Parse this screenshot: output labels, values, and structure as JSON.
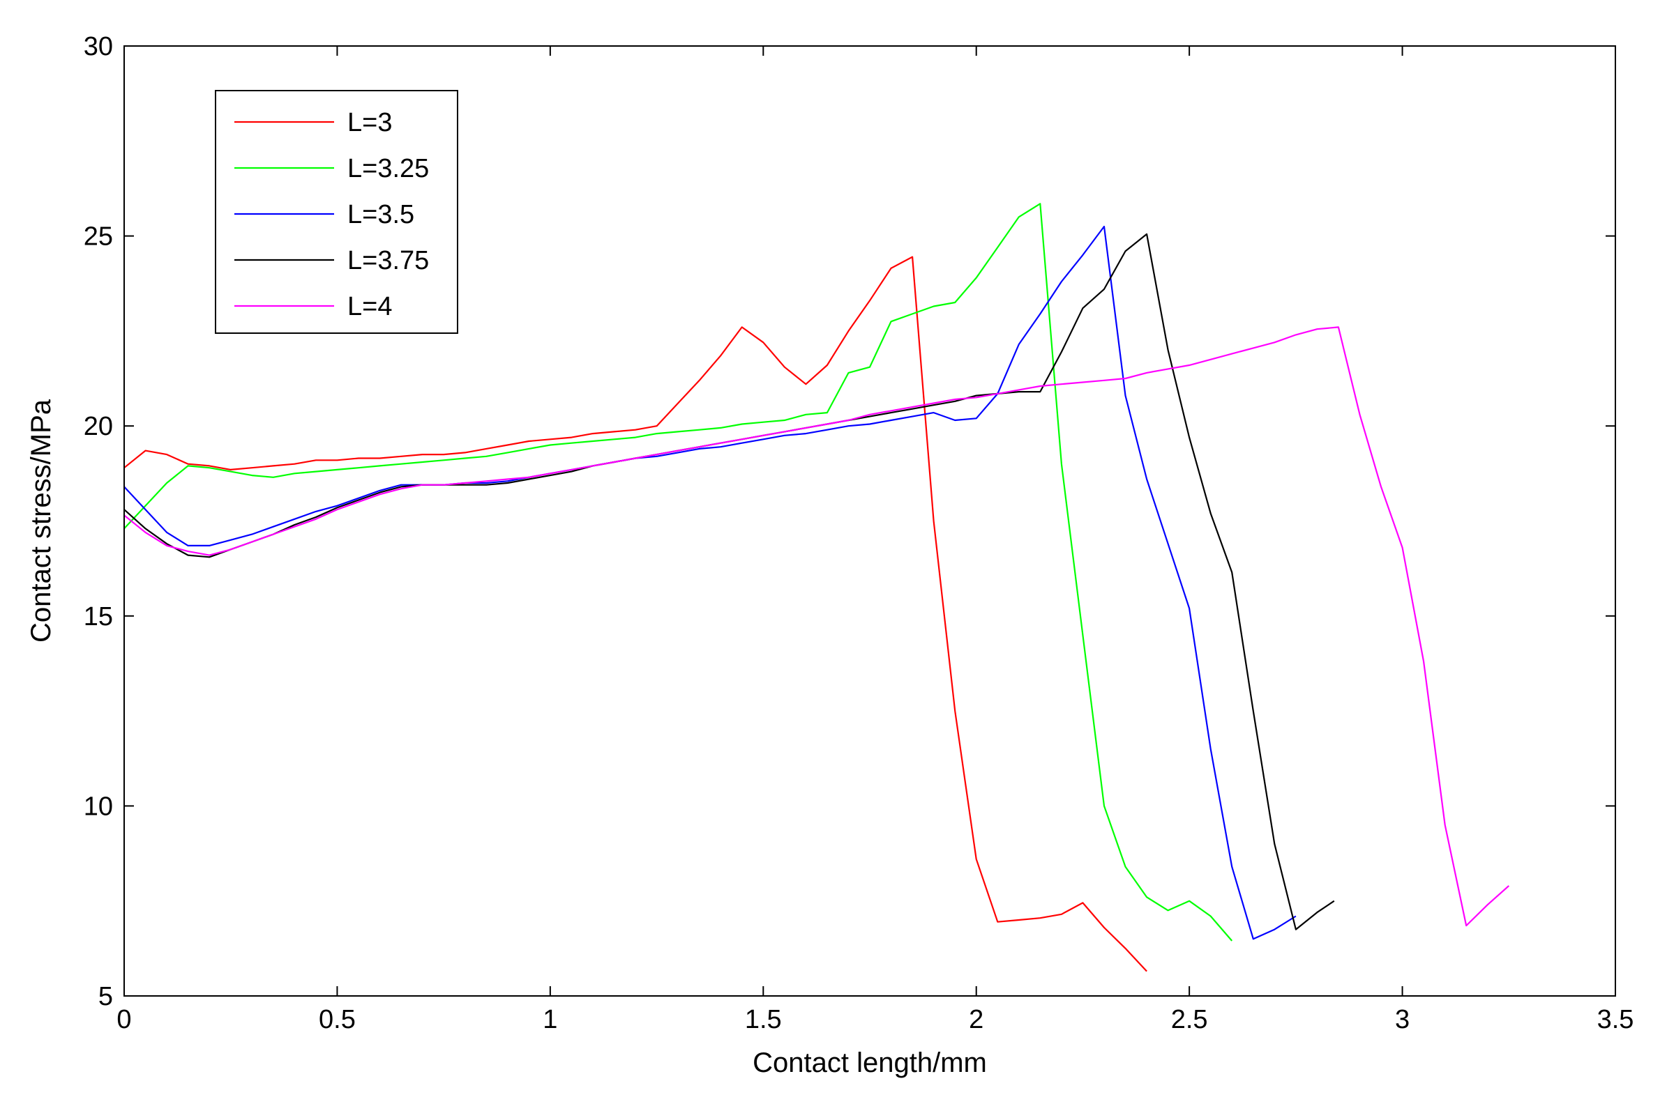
{
  "chart_data": {
    "type": "line",
    "title": "",
    "xlabel": "Contact length/mm",
    "ylabel": "Contact stress/MPa",
    "xlim": [
      0,
      3.5
    ],
    "ylim": [
      5,
      30
    ],
    "xticks": [
      "0",
      "0.5",
      "1",
      "1.5",
      "2",
      "2.5",
      "3",
      "3.5"
    ],
    "yticks": [
      "5",
      "10",
      "15",
      "20",
      "25",
      "30"
    ],
    "grid": false,
    "legend_position": "top-left",
    "series": [
      {
        "name": "L=3",
        "color": "#ff0000",
        "points": [
          [
            0,
            18.9
          ],
          [
            0.05,
            19.35
          ],
          [
            0.1,
            19.25
          ],
          [
            0.15,
            19.0
          ],
          [
            0.2,
            18.95
          ],
          [
            0.25,
            18.85
          ],
          [
            0.3,
            18.9
          ],
          [
            0.35,
            18.95
          ],
          [
            0.4,
            19.0
          ],
          [
            0.45,
            19.1
          ],
          [
            0.5,
            19.1
          ],
          [
            0.55,
            19.15
          ],
          [
            0.6,
            19.15
          ],
          [
            0.65,
            19.2
          ],
          [
            0.7,
            19.25
          ],
          [
            0.75,
            19.25
          ],
          [
            0.8,
            19.3
          ],
          [
            0.85,
            19.4
          ],
          [
            0.9,
            19.5
          ],
          [
            0.95,
            19.6
          ],
          [
            1.0,
            19.65
          ],
          [
            1.05,
            19.7
          ],
          [
            1.1,
            19.8
          ],
          [
            1.15,
            19.85
          ],
          [
            1.2,
            19.9
          ],
          [
            1.25,
            20.0
          ],
          [
            1.3,
            20.6
          ],
          [
            1.35,
            21.2
          ],
          [
            1.4,
            21.85
          ],
          [
            1.45,
            22.6
          ],
          [
            1.5,
            22.2
          ],
          [
            1.55,
            21.55
          ],
          [
            1.6,
            21.1
          ],
          [
            1.65,
            21.6
          ],
          [
            1.7,
            22.5
          ],
          [
            1.75,
            23.3
          ],
          [
            1.8,
            24.15
          ],
          [
            1.85,
            24.45
          ],
          [
            1.9,
            17.5
          ],
          [
            1.95,
            12.5
          ],
          [
            2.0,
            8.6
          ],
          [
            2.05,
            6.95
          ],
          [
            2.1,
            7.0
          ],
          [
            2.15,
            7.05
          ],
          [
            2.2,
            7.15
          ],
          [
            2.25,
            7.45
          ],
          [
            2.3,
            6.8
          ],
          [
            2.35,
            6.25
          ],
          [
            2.4,
            5.65
          ]
        ]
      },
      {
        "name": "L=3.25",
        "color": "#00ff00",
        "points": [
          [
            0,
            17.3
          ],
          [
            0.05,
            17.9
          ],
          [
            0.1,
            18.5
          ],
          [
            0.15,
            18.95
          ],
          [
            0.2,
            18.9
          ],
          [
            0.25,
            18.8
          ],
          [
            0.3,
            18.7
          ],
          [
            0.35,
            18.65
          ],
          [
            0.4,
            18.75
          ],
          [
            0.45,
            18.8
          ],
          [
            0.5,
            18.85
          ],
          [
            0.55,
            18.9
          ],
          [
            0.6,
            18.95
          ],
          [
            0.65,
            19.0
          ],
          [
            0.7,
            19.05
          ],
          [
            0.75,
            19.1
          ],
          [
            0.8,
            19.15
          ],
          [
            0.85,
            19.2
          ],
          [
            0.9,
            19.3
          ],
          [
            0.95,
            19.4
          ],
          [
            1.0,
            19.5
          ],
          [
            1.05,
            19.55
          ],
          [
            1.1,
            19.6
          ],
          [
            1.15,
            19.65
          ],
          [
            1.2,
            19.7
          ],
          [
            1.25,
            19.8
          ],
          [
            1.3,
            19.85
          ],
          [
            1.35,
            19.9
          ],
          [
            1.4,
            19.95
          ],
          [
            1.45,
            20.05
          ],
          [
            1.5,
            20.1
          ],
          [
            1.55,
            20.15
          ],
          [
            1.6,
            20.3
          ],
          [
            1.65,
            20.35
          ],
          [
            1.7,
            21.4
          ],
          [
            1.75,
            21.55
          ],
          [
            1.8,
            22.75
          ],
          [
            1.85,
            22.95
          ],
          [
            1.9,
            23.15
          ],
          [
            1.95,
            23.25
          ],
          [
            2.0,
            23.9
          ],
          [
            2.05,
            24.7
          ],
          [
            2.1,
            25.5
          ],
          [
            2.15,
            25.85
          ],
          [
            2.2,
            19.0
          ],
          [
            2.25,
            14.5
          ],
          [
            2.3,
            10.0
          ],
          [
            2.35,
            8.4
          ],
          [
            2.4,
            7.6
          ],
          [
            2.45,
            7.25
          ],
          [
            2.5,
            7.5
          ],
          [
            2.55,
            7.1
          ],
          [
            2.6,
            6.45
          ]
        ]
      },
      {
        "name": "L=3.5",
        "color": "#0000ff",
        "points": [
          [
            0,
            18.4
          ],
          [
            0.05,
            17.8
          ],
          [
            0.1,
            17.2
          ],
          [
            0.15,
            16.85
          ],
          [
            0.2,
            16.85
          ],
          [
            0.25,
            17.0
          ],
          [
            0.3,
            17.15
          ],
          [
            0.35,
            17.35
          ],
          [
            0.4,
            17.55
          ],
          [
            0.45,
            17.75
          ],
          [
            0.5,
            17.9
          ],
          [
            0.55,
            18.1
          ],
          [
            0.6,
            18.3
          ],
          [
            0.65,
            18.45
          ],
          [
            0.7,
            18.45
          ],
          [
            0.75,
            18.45
          ],
          [
            0.8,
            18.5
          ],
          [
            0.85,
            18.5
          ],
          [
            0.9,
            18.55
          ],
          [
            0.95,
            18.65
          ],
          [
            1.0,
            18.75
          ],
          [
            1.05,
            18.85
          ],
          [
            1.1,
            18.95
          ],
          [
            1.15,
            19.05
          ],
          [
            1.2,
            19.15
          ],
          [
            1.25,
            19.2
          ],
          [
            1.3,
            19.3
          ],
          [
            1.35,
            19.4
          ],
          [
            1.4,
            19.45
          ],
          [
            1.45,
            19.55
          ],
          [
            1.5,
            19.65
          ],
          [
            1.55,
            19.75
          ],
          [
            1.6,
            19.8
          ],
          [
            1.65,
            19.9
          ],
          [
            1.7,
            20.0
          ],
          [
            1.75,
            20.05
          ],
          [
            1.8,
            20.15
          ],
          [
            1.85,
            20.25
          ],
          [
            1.9,
            20.35
          ],
          [
            1.95,
            20.15
          ],
          [
            2.0,
            20.2
          ],
          [
            2.05,
            20.85
          ],
          [
            2.1,
            22.15
          ],
          [
            2.15,
            22.95
          ],
          [
            2.2,
            23.8
          ],
          [
            2.25,
            24.5
          ],
          [
            2.3,
            25.25
          ],
          [
            2.35,
            20.8
          ],
          [
            2.4,
            18.6
          ],
          [
            2.45,
            16.9
          ],
          [
            2.5,
            15.2
          ],
          [
            2.55,
            11.5
          ],
          [
            2.6,
            8.4
          ],
          [
            2.65,
            6.5
          ],
          [
            2.7,
            6.75
          ],
          [
            2.75,
            7.1
          ]
        ]
      },
      {
        "name": "L=3.75",
        "color": "#000000",
        "points": [
          [
            0,
            17.8
          ],
          [
            0.05,
            17.3
          ],
          [
            0.1,
            16.9
          ],
          [
            0.15,
            16.6
          ],
          [
            0.2,
            16.55
          ],
          [
            0.25,
            16.75
          ],
          [
            0.3,
            16.95
          ],
          [
            0.35,
            17.15
          ],
          [
            0.4,
            17.4
          ],
          [
            0.45,
            17.6
          ],
          [
            0.5,
            17.85
          ],
          [
            0.55,
            18.05
          ],
          [
            0.6,
            18.25
          ],
          [
            0.65,
            18.4
          ],
          [
            0.7,
            18.45
          ],
          [
            0.75,
            18.45
          ],
          [
            0.8,
            18.45
          ],
          [
            0.85,
            18.45
          ],
          [
            0.9,
            18.5
          ],
          [
            0.95,
            18.6
          ],
          [
            1.0,
            18.7
          ],
          [
            1.05,
            18.8
          ],
          [
            1.1,
            18.95
          ],
          [
            1.15,
            19.05
          ],
          [
            1.2,
            19.15
          ],
          [
            1.25,
            19.25
          ],
          [
            1.3,
            19.35
          ],
          [
            1.35,
            19.45
          ],
          [
            1.4,
            19.55
          ],
          [
            1.45,
            19.65
          ],
          [
            1.5,
            19.75
          ],
          [
            1.55,
            19.85
          ],
          [
            1.6,
            19.95
          ],
          [
            1.65,
            20.05
          ],
          [
            1.7,
            20.15
          ],
          [
            1.75,
            20.25
          ],
          [
            1.8,
            20.35
          ],
          [
            1.85,
            20.45
          ],
          [
            1.9,
            20.55
          ],
          [
            1.95,
            20.65
          ],
          [
            2.0,
            20.8
          ],
          [
            2.05,
            20.85
          ],
          [
            2.1,
            20.9
          ],
          [
            2.15,
            20.9
          ],
          [
            2.2,
            21.95
          ],
          [
            2.25,
            23.1
          ],
          [
            2.3,
            23.6
          ],
          [
            2.35,
            24.6
          ],
          [
            2.4,
            25.05
          ],
          [
            2.45,
            22.0
          ],
          [
            2.5,
            19.7
          ],
          [
            2.55,
            17.7
          ],
          [
            2.6,
            16.15
          ],
          [
            2.65,
            12.5
          ],
          [
            2.7,
            9.0
          ],
          [
            2.75,
            6.75
          ],
          [
            2.8,
            7.2
          ],
          [
            2.84,
            7.5
          ]
        ]
      },
      {
        "name": "L=4",
        "color": "#ff00ff",
        "points": [
          [
            0,
            17.65
          ],
          [
            0.05,
            17.2
          ],
          [
            0.1,
            16.85
          ],
          [
            0.15,
            16.7
          ],
          [
            0.2,
            16.6
          ],
          [
            0.25,
            16.75
          ],
          [
            0.3,
            16.95
          ],
          [
            0.35,
            17.15
          ],
          [
            0.4,
            17.35
          ],
          [
            0.45,
            17.55
          ],
          [
            0.5,
            17.8
          ],
          [
            0.55,
            18.0
          ],
          [
            0.6,
            18.2
          ],
          [
            0.65,
            18.35
          ],
          [
            0.7,
            18.45
          ],
          [
            0.75,
            18.45
          ],
          [
            0.8,
            18.5
          ],
          [
            0.85,
            18.55
          ],
          [
            0.9,
            18.6
          ],
          [
            0.95,
            18.65
          ],
          [
            1.0,
            18.75
          ],
          [
            1.05,
            18.85
          ],
          [
            1.1,
            18.95
          ],
          [
            1.15,
            19.05
          ],
          [
            1.2,
            19.15
          ],
          [
            1.25,
            19.25
          ],
          [
            1.3,
            19.35
          ],
          [
            1.35,
            19.45
          ],
          [
            1.4,
            19.55
          ],
          [
            1.45,
            19.65
          ],
          [
            1.5,
            19.75
          ],
          [
            1.55,
            19.85
          ],
          [
            1.6,
            19.95
          ],
          [
            1.65,
            20.05
          ],
          [
            1.7,
            20.15
          ],
          [
            1.75,
            20.3
          ],
          [
            1.8,
            20.4
          ],
          [
            1.85,
            20.5
          ],
          [
            1.9,
            20.6
          ],
          [
            1.95,
            20.7
          ],
          [
            2.0,
            20.75
          ],
          [
            2.05,
            20.85
          ],
          [
            2.1,
            20.95
          ],
          [
            2.15,
            21.05
          ],
          [
            2.2,
            21.1
          ],
          [
            2.25,
            21.15
          ],
          [
            2.3,
            21.2
          ],
          [
            2.35,
            21.25
          ],
          [
            2.4,
            21.4
          ],
          [
            2.45,
            21.5
          ],
          [
            2.5,
            21.6
          ],
          [
            2.55,
            21.75
          ],
          [
            2.6,
            21.9
          ],
          [
            2.65,
            22.05
          ],
          [
            2.7,
            22.2
          ],
          [
            2.75,
            22.4
          ],
          [
            2.8,
            22.55
          ],
          [
            2.85,
            22.6
          ],
          [
            2.9,
            20.3
          ],
          [
            2.95,
            18.4
          ],
          [
            3.0,
            16.8
          ],
          [
            3.05,
            13.8
          ],
          [
            3.1,
            9.5
          ],
          [
            3.15,
            6.85
          ],
          [
            3.2,
            7.4
          ],
          [
            3.25,
            7.9
          ]
        ]
      }
    ]
  }
}
